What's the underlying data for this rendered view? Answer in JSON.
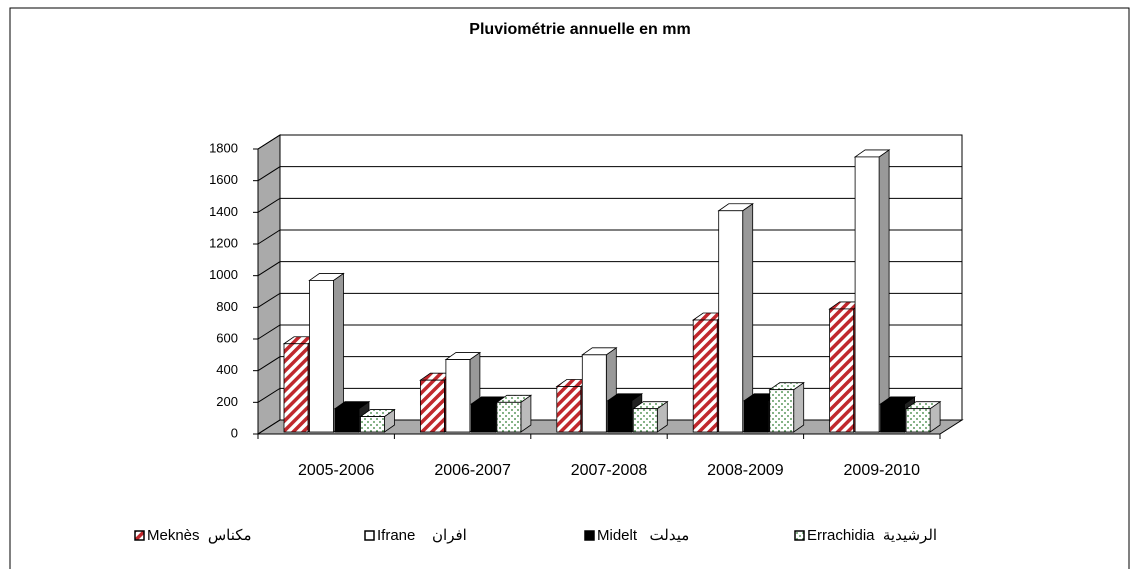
{
  "chart_data": {
    "type": "bar3d",
    "title": "Pluviométrie annuelle  en mm",
    "categories": [
      "2005-2006",
      "2006-2007",
      "2007-2008",
      "2008-2009",
      "2009-2010"
    ],
    "series": [
      {
        "name": "Meknès  مكناس",
        "color": "#c0282d",
        "fill": "hatch",
        "values": [
          570,
          340,
          300,
          720,
          790
        ]
      },
      {
        "name": "Ifrane    افران",
        "color": "#ffffff",
        "fill": "solid",
        "values": [
          970,
          470,
          500,
          1410,
          1750
        ]
      },
      {
        "name": "Midelt   ميدلت",
        "color": "#000000",
        "fill": "solid",
        "values": [
          160,
          190,
          210,
          210,
          190
        ]
      },
      {
        "name": "Errachidia  الرشيدية",
        "color": "#2e7d32",
        "fill": "dots",
        "values": [
          110,
          200,
          160,
          280,
          160
        ]
      }
    ],
    "ylim": [
      0,
      1800
    ],
    "yticks": [
      0,
      200,
      400,
      600,
      800,
      1000,
      1200,
      1400,
      1600,
      1800
    ],
    "grid": true
  }
}
